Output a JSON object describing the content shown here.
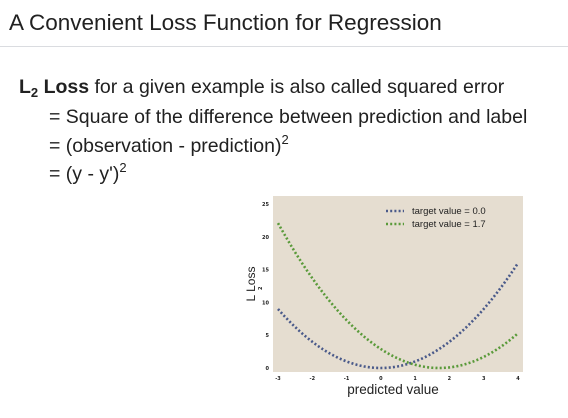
{
  "slide": {
    "title": "A Convenient Loss Function for Regression",
    "line1_term": "L",
    "line1_sub": "2",
    "line1_term_suffix": " Loss",
    "line1_rest": " for a given example is also called squared error",
    "line2": "= Square of the difference between prediction and label",
    "line3": "= (observation - prediction)",
    "line3_sup": "2",
    "line4": "= (y - y')",
    "line4_sup": "2"
  },
  "chart_data": {
    "type": "line",
    "xlabel": "predicted value",
    "ylabel": "L  Loss",
    "ylabel_sub": "2",
    "xlim": [
      -3,
      4
    ],
    "ylim": [
      0,
      25
    ],
    "xticks": [
      -3,
      -2,
      -1,
      0,
      1,
      2,
      3,
      4
    ],
    "yticks": [
      0,
      5,
      10,
      15,
      20,
      25
    ],
    "legend_position": "top-right",
    "colors": {
      "background": "#e5ddd0",
      "target_0": "#4a5a8a",
      "target_1_7": "#5a9a3a"
    },
    "series": [
      {
        "name": "target value = 0.0",
        "target": 0.0,
        "x": [
          -3,
          -2,
          -1,
          0,
          1,
          2,
          3,
          4
        ],
        "y": [
          9,
          4,
          1,
          0,
          1,
          4,
          9,
          16
        ]
      },
      {
        "name": "target value = 1.7",
        "target": 1.7,
        "x": [
          -3,
          -2,
          -1,
          0,
          1,
          2,
          3,
          4
        ],
        "y": [
          22.09,
          13.69,
          7.29,
          2.89,
          0.49,
          0.09,
          1.69,
          5.29
        ]
      }
    ]
  }
}
